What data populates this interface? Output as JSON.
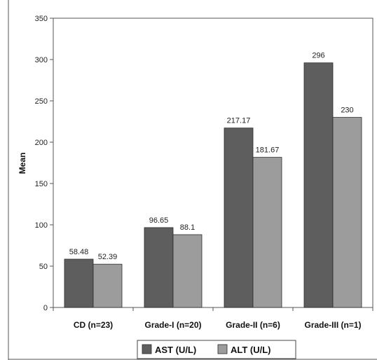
{
  "chart_data": {
    "type": "bar",
    "title": "",
    "xlabel": "",
    "ylabel": "Mean",
    "categories": [
      "CD (n=23)",
      "Grade-I (n=20)",
      "Grade-II (n=6)",
      "Grade-III (n=1)"
    ],
    "series": [
      {
        "name": "AST (U/L)",
        "values": [
          58.48,
          96.65,
          217.17,
          296
        ],
        "labels": [
          "58.48",
          "96.65",
          "217.17",
          "296"
        ],
        "color": "#5e5e5e"
      },
      {
        "name": "ALT (U/L)",
        "values": [
          52.39,
          88.1,
          181.67,
          230
        ],
        "labels": [
          "52.39",
          "88.1",
          "181.67",
          "230"
        ],
        "color": "#9c9c9c"
      }
    ],
    "ylim": [
      0,
      350
    ],
    "yticks": [
      0,
      50,
      100,
      150,
      200,
      250,
      300,
      350
    ],
    "grid": false,
    "legend": "bottom"
  }
}
